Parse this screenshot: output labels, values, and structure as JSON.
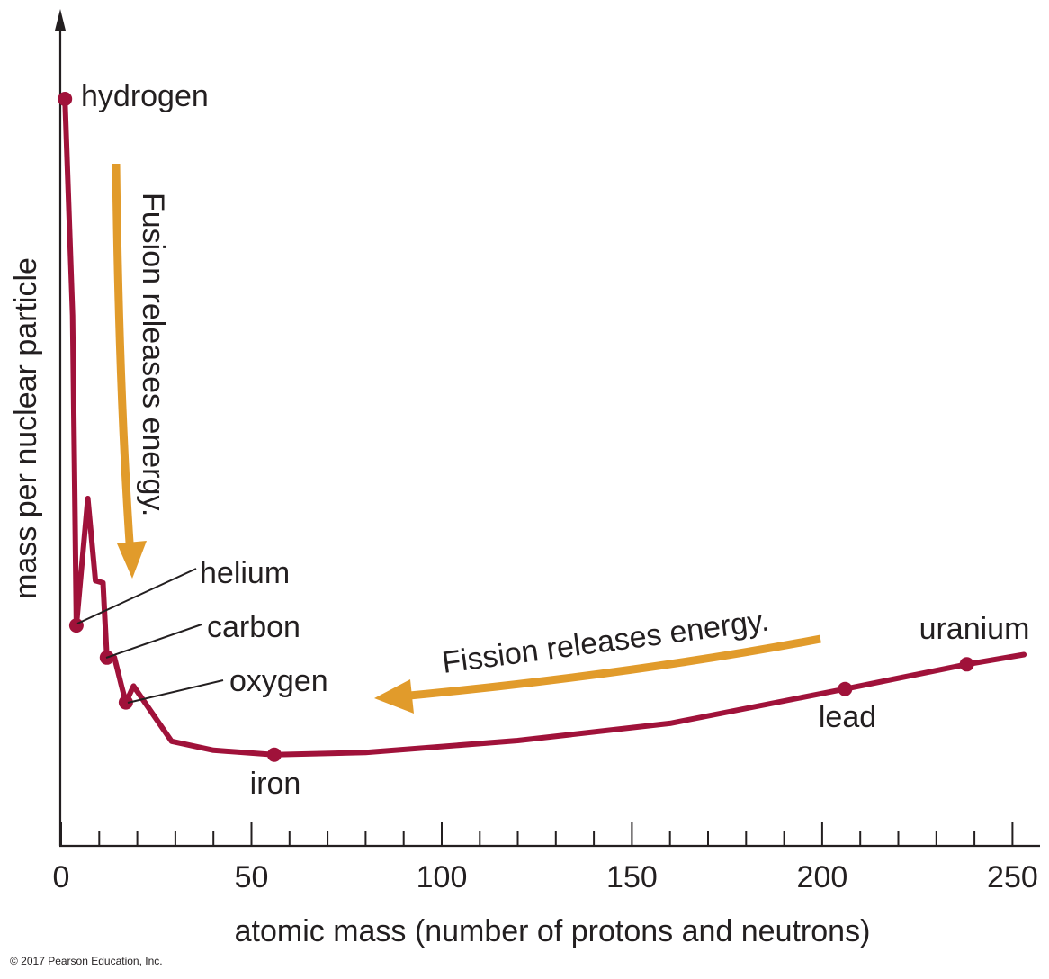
{
  "chart_data": {
    "type": "line",
    "title": "",
    "xlabel": "atomic mass (number of protons and neutrons)",
    "ylabel": "mass per nuclear particle",
    "xlim": [
      0,
      257
    ],
    "ylim": [
      0,
      1
    ],
    "x_ticks_major": [
      0,
      50,
      100,
      150,
      200,
      250
    ],
    "x_tick_labels": [
      "0",
      "50",
      "100",
      "150",
      "200",
      "250"
    ],
    "x_minor_step": 10,
    "y_ticks_shown": false,
    "grid": false,
    "series": [
      {
        "name": "mass per nuclear particle",
        "color": "#a0123a",
        "x": [
          1,
          3,
          4,
          7,
          9,
          11,
          12,
          14,
          16,
          17,
          19,
          29,
          40,
          56,
          80,
          120,
          160,
          206,
          238,
          253
        ],
        "y": [
          1.0,
          0.71,
          0.295,
          0.465,
          0.355,
          0.352,
          0.252,
          0.252,
          0.211,
          0.192,
          0.214,
          0.14,
          0.128,
          0.122,
          0.125,
          0.141,
          0.164,
          0.21,
          0.243,
          0.256
        ]
      }
    ],
    "marked_points": [
      {
        "label": "hydrogen",
        "x": 1,
        "y": 1.0
      },
      {
        "label": "helium",
        "x": 4,
        "y": 0.295
      },
      {
        "label": "carbon",
        "x": 12,
        "y": 0.252
      },
      {
        "label": "oxygen",
        "x": 17,
        "y": 0.192
      },
      {
        "label": "iron",
        "x": 56,
        "y": 0.122
      },
      {
        "label": "lead",
        "x": 206,
        "y": 0.21
      },
      {
        "label": "uranium",
        "x": 238,
        "y": 0.243
      }
    ],
    "annotations": [
      {
        "text": "Fusion releases energy.",
        "color": "#e19b2b",
        "direction": "down"
      },
      {
        "text": "Fission releases energy.",
        "color": "#e19b2b",
        "direction": "left"
      }
    ]
  },
  "footer": {
    "copyright": "© 2017 Pearson Education, Inc."
  }
}
